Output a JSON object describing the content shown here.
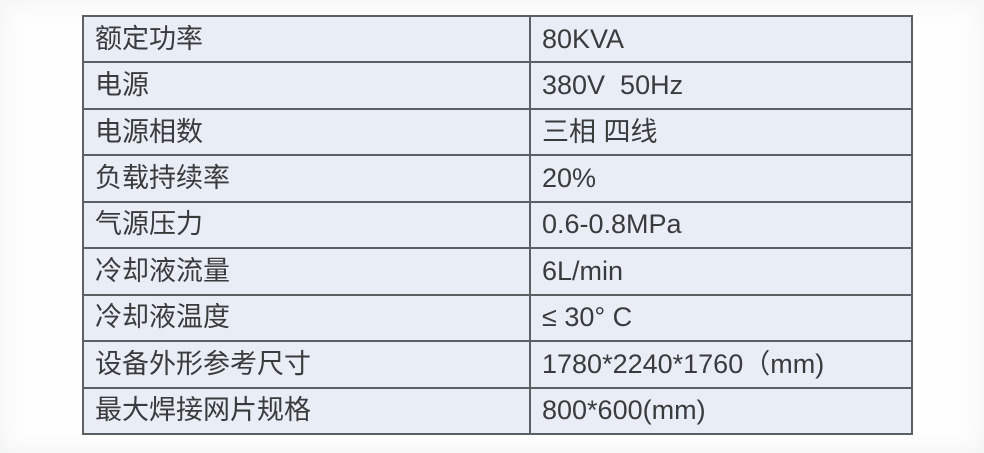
{
  "page": {
    "background": "#ffffff"
  },
  "spec_table": {
    "cell_bg": "#e9edf6",
    "border_color": "#5d6063",
    "text_color": "#3a3b3d",
    "rows": [
      {
        "label": "额定功率",
        "value": "80KVA"
      },
      {
        "label": "电源",
        "value": "380V  50Hz"
      },
      {
        "label": "电源相数",
        "value": "三相 四线"
      },
      {
        "label": "负载持续率",
        "value": "20%"
      },
      {
        "label": "气源压力",
        "value": "0.6-0.8MPa"
      },
      {
        "label": "冷却液流量",
        "value": "6L/min"
      },
      {
        "label": "冷却液温度",
        "value": "≤ 30° C"
      },
      {
        "label": "设备外形参考尺寸",
        "value": "1780*2240*1760（mm)"
      },
      {
        "label": "最大焊接网片规格",
        "value": "800*600(mm)"
      }
    ]
  }
}
